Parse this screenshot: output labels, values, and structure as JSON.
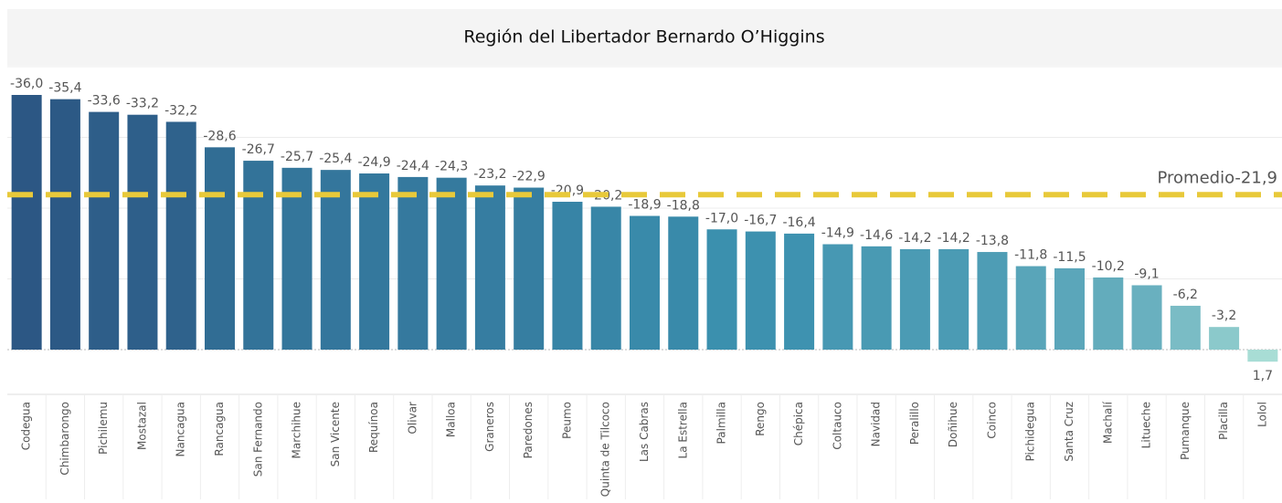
{
  "chart_data": {
    "type": "bar",
    "title": "Región del Libertador Bernardo O’Higgins",
    "categories": [
      "Codegua",
      "Chimbarongo",
      "Pichilemu",
      "Mostazal",
      "Nancagua",
      "Rancagua",
      "San Fernando",
      "Marchihue",
      "San Vicente",
      "Requínoa",
      "Olivar",
      "Malloa",
      "Graneros",
      "Paredones",
      "Peumo",
      "Quinta de Tilcoco",
      "Las Cabras",
      "La Estrella",
      "Palmilla",
      "Rengo",
      "Chépica",
      "Coltauco",
      "Navidad",
      "Peralillo",
      "Doñihue",
      "Coinco",
      "Pichidegua",
      "Santa Cruz",
      "Machalí",
      "Litueche",
      "Pumanque",
      "Placilla",
      "Lolol"
    ],
    "values": [
      -36.0,
      -35.4,
      -33.6,
      -33.2,
      -32.2,
      -28.6,
      -26.7,
      -25.7,
      -25.4,
      -24.9,
      -24.4,
      -24.3,
      -23.2,
      -22.9,
      -20.9,
      -20.2,
      -18.9,
      -18.8,
      -17.0,
      -16.7,
      -16.4,
      -14.9,
      -14.6,
      -14.2,
      -14.2,
      -13.8,
      -11.8,
      -11.5,
      -10.2,
      -9.1,
      -6.2,
      -3.2,
      1.7
    ],
    "value_labels": [
      "-36,0",
      "-35,4",
      "-33,6",
      "-33,2",
      "-32,2",
      "-28,6",
      "-26,7",
      "-25,7",
      "-25,4",
      "-24,9",
      "-24,4",
      "-24,3",
      "-23,2",
      "-22,9",
      "-20,9",
      "-20,2",
      "-18,9",
      "-18,8",
      "-17,0",
      "-16,7",
      "-16,4",
      "-14,9",
      "-14,6",
      "-14,2",
      "-14,2",
      "-13,8",
      "-11,8",
      "-11,5",
      "-10,2",
      "-9,1",
      "-6,2",
      "-3,2",
      "1,7"
    ],
    "color_range": [
      "#2c5784",
      "#3a8fae",
      "#a8ddd5"
    ],
    "ylim": [
      6,
      -40
    ],
    "yticks": [
      -40,
      -30,
      -20,
      -10,
      0
    ],
    "grid": true,
    "reference_line": {
      "label": "Promedio",
      "value": -21.9,
      "value_label": "-21,9",
      "color": "#e8c93a"
    }
  }
}
